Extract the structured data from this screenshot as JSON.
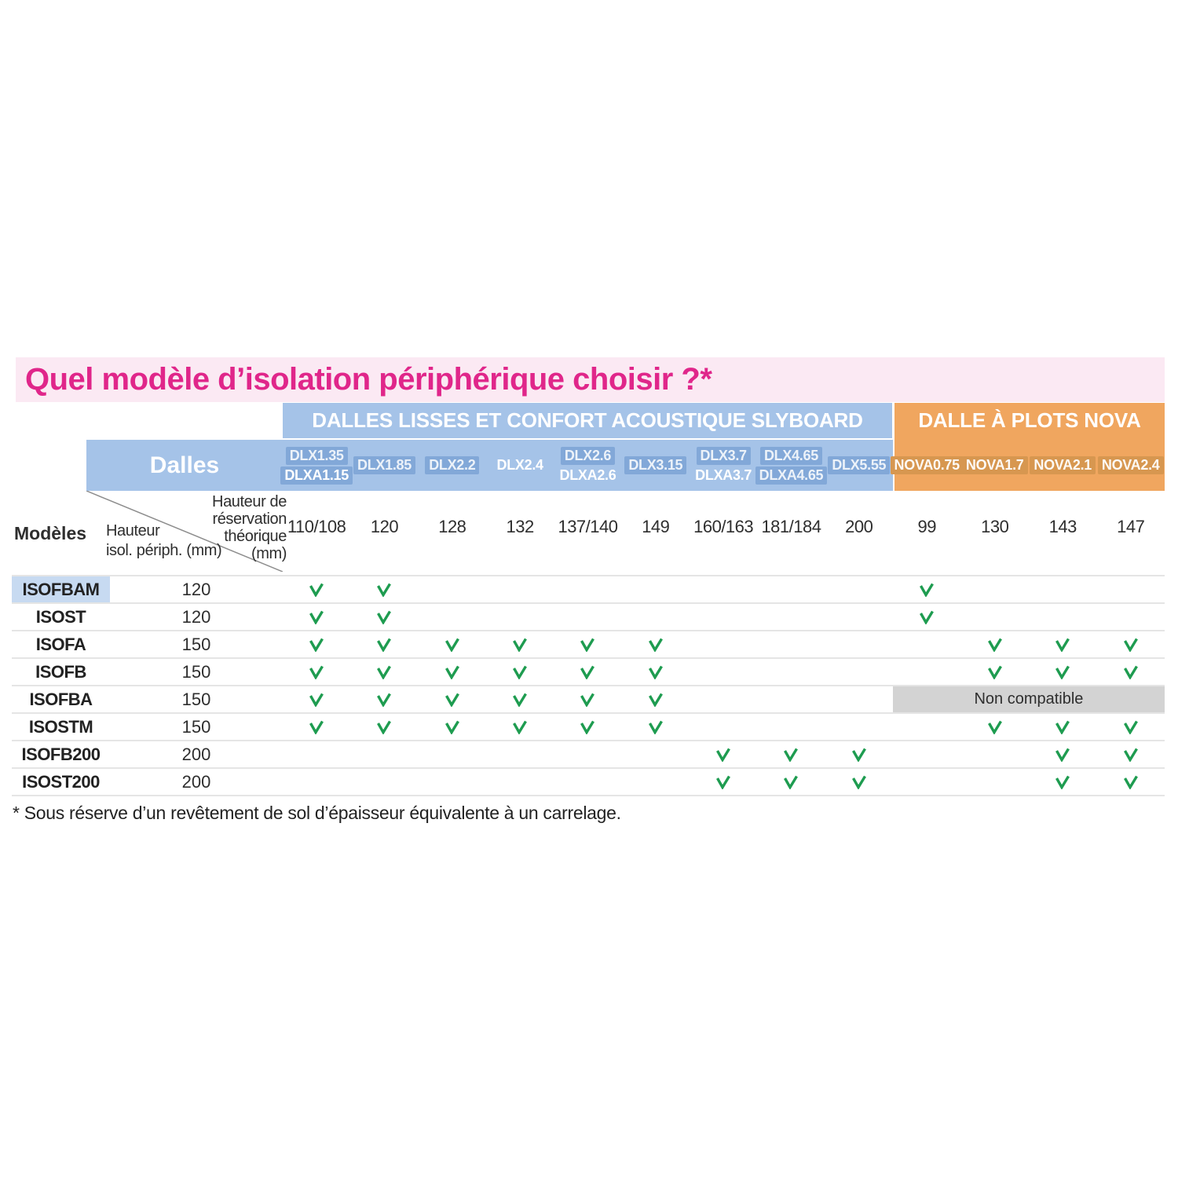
{
  "title": "Quel modèle d’isolation périphérique choisir ?*",
  "footnote": "* Sous réserve d’un revêtement de sol d’épaisseur équivalente à un carrelage.",
  "groups": {
    "slyboard": "DALLES LISSES ET CONFORT ACOUSTIQUE SLYBOARD",
    "nova": "DALLE À PLOTS NOVA"
  },
  "header": {
    "dalles_label": "Dalles",
    "modeles_label": "Modèles",
    "reservation_label_lines": [
      "Hauteur de réservation",
      "théorique",
      "(mm)"
    ],
    "hauteur_label_lines": [
      "Hauteur",
      "isol. périph. (mm)"
    ]
  },
  "non_compatible_label": "Non compatible",
  "columns": [
    {
      "group": "slyboard",
      "reservation": "110/108",
      "lines": [
        {
          "text": "DLX1.35",
          "chip": true,
          "bold": false
        },
        {
          "text": "DLXA1.15",
          "chip": true,
          "bold": true
        }
      ]
    },
    {
      "group": "slyboard",
      "reservation": "120",
      "lines": [
        {
          "text": "DLX1.85",
          "chip": true,
          "bold": false
        }
      ]
    },
    {
      "group": "slyboard",
      "reservation": "128",
      "lines": [
        {
          "text": "DLX2.2",
          "chip": true,
          "bold": false
        }
      ]
    },
    {
      "group": "slyboard",
      "reservation": "132",
      "lines": [
        {
          "text": "DLX2.4",
          "chip": false,
          "bold": true
        }
      ]
    },
    {
      "group": "slyboard",
      "reservation": "137/140",
      "lines": [
        {
          "text": "DLX2.6",
          "chip": true,
          "bold": false
        },
        {
          "text": "DLXA2.6",
          "chip": false,
          "bold": true
        }
      ]
    },
    {
      "group": "slyboard",
      "reservation": "149",
      "lines": [
        {
          "text": "DLX3.15",
          "chip": true,
          "bold": false
        }
      ]
    },
    {
      "group": "slyboard",
      "reservation": "160/163",
      "lines": [
        {
          "text": "DLX3.7",
          "chip": true,
          "bold": false
        },
        {
          "text": "DLXA3.7",
          "chip": false,
          "bold": true
        }
      ]
    },
    {
      "group": "slyboard",
      "reservation": "181/184",
      "lines": [
        {
          "text": "DLX4.65",
          "chip": true,
          "bold": false
        },
        {
          "text": "DLXA4.65",
          "chip": true,
          "bold": false
        }
      ]
    },
    {
      "group": "slyboard",
      "reservation": "200",
      "lines": [
        {
          "text": "DLX5.55",
          "chip": true,
          "bold": false
        }
      ]
    },
    {
      "group": "nova",
      "reservation": "99",
      "lines": [
        {
          "text": "NOVA0.75",
          "chip": true,
          "bold": false
        }
      ]
    },
    {
      "group": "nova",
      "reservation": "130",
      "lines": [
        {
          "text": "NOVA1.7",
          "chip": true,
          "bold": false
        }
      ]
    },
    {
      "group": "nova",
      "reservation": "143",
      "lines": [
        {
          "text": "NOVA2.1",
          "chip": true,
          "bold": false
        }
      ]
    },
    {
      "group": "nova",
      "reservation": "147",
      "lines": [
        {
          "text": "NOVA2.4",
          "chip": true,
          "bold": false
        }
      ]
    }
  ],
  "rows": [
    {
      "model": "ISOFBAM",
      "highlight": true,
      "hauteur": "120",
      "checks": [
        1,
        1,
        0,
        0,
        0,
        0,
        0,
        0,
        0,
        1,
        0,
        0,
        0
      ],
      "non_compatible": false
    },
    {
      "model": "ISOST",
      "highlight": false,
      "hauteur": "120",
      "checks": [
        1,
        1,
        0,
        0,
        0,
        0,
        0,
        0,
        0,
        1,
        0,
        0,
        0
      ],
      "non_compatible": false
    },
    {
      "model": "ISOFA",
      "highlight": false,
      "hauteur": "150",
      "checks": [
        1,
        1,
        1,
        1,
        1,
        1,
        0,
        0,
        0,
        0,
        1,
        1,
        1
      ],
      "non_compatible": false
    },
    {
      "model": "ISOFB",
      "highlight": false,
      "hauteur": "150",
      "checks": [
        1,
        1,
        1,
        1,
        1,
        1,
        0,
        0,
        0,
        0,
        1,
        1,
        1
      ],
      "non_compatible": false
    },
    {
      "model": "ISOFBA",
      "highlight": false,
      "hauteur": "150",
      "checks": [
        1,
        1,
        1,
        1,
        1,
        1,
        0,
        0,
        0,
        0,
        0,
        0,
        0
      ],
      "non_compatible": true
    },
    {
      "model": "ISOSTM",
      "highlight": false,
      "hauteur": "150",
      "checks": [
        1,
        1,
        1,
        1,
        1,
        1,
        0,
        0,
        0,
        0,
        1,
        1,
        1
      ],
      "non_compatible": false
    },
    {
      "model": "ISOFB200",
      "highlight": false,
      "hauteur": "200",
      "checks": [
        0,
        0,
        0,
        0,
        0,
        0,
        1,
        1,
        1,
        0,
        0,
        1,
        1
      ],
      "non_compatible": false
    },
    {
      "model": "ISOST200",
      "highlight": false,
      "hauteur": "200",
      "checks": [
        0,
        0,
        0,
        0,
        0,
        0,
        1,
        1,
        1,
        0,
        0,
        1,
        1
      ],
      "non_compatible": false
    }
  ],
  "colors": {
    "title_pink": "#E0268A",
    "title_band": "#FBE9F3",
    "blue_band": "#A5C3E8",
    "blue_chip": "#82A8D8",
    "orange_band": "#F0A65F",
    "orange_chip": "#D79750",
    "check": "#1E9C50",
    "non_compatible_gray": "#D3D3D3",
    "highlight_blue": "#C7DAF1"
  }
}
